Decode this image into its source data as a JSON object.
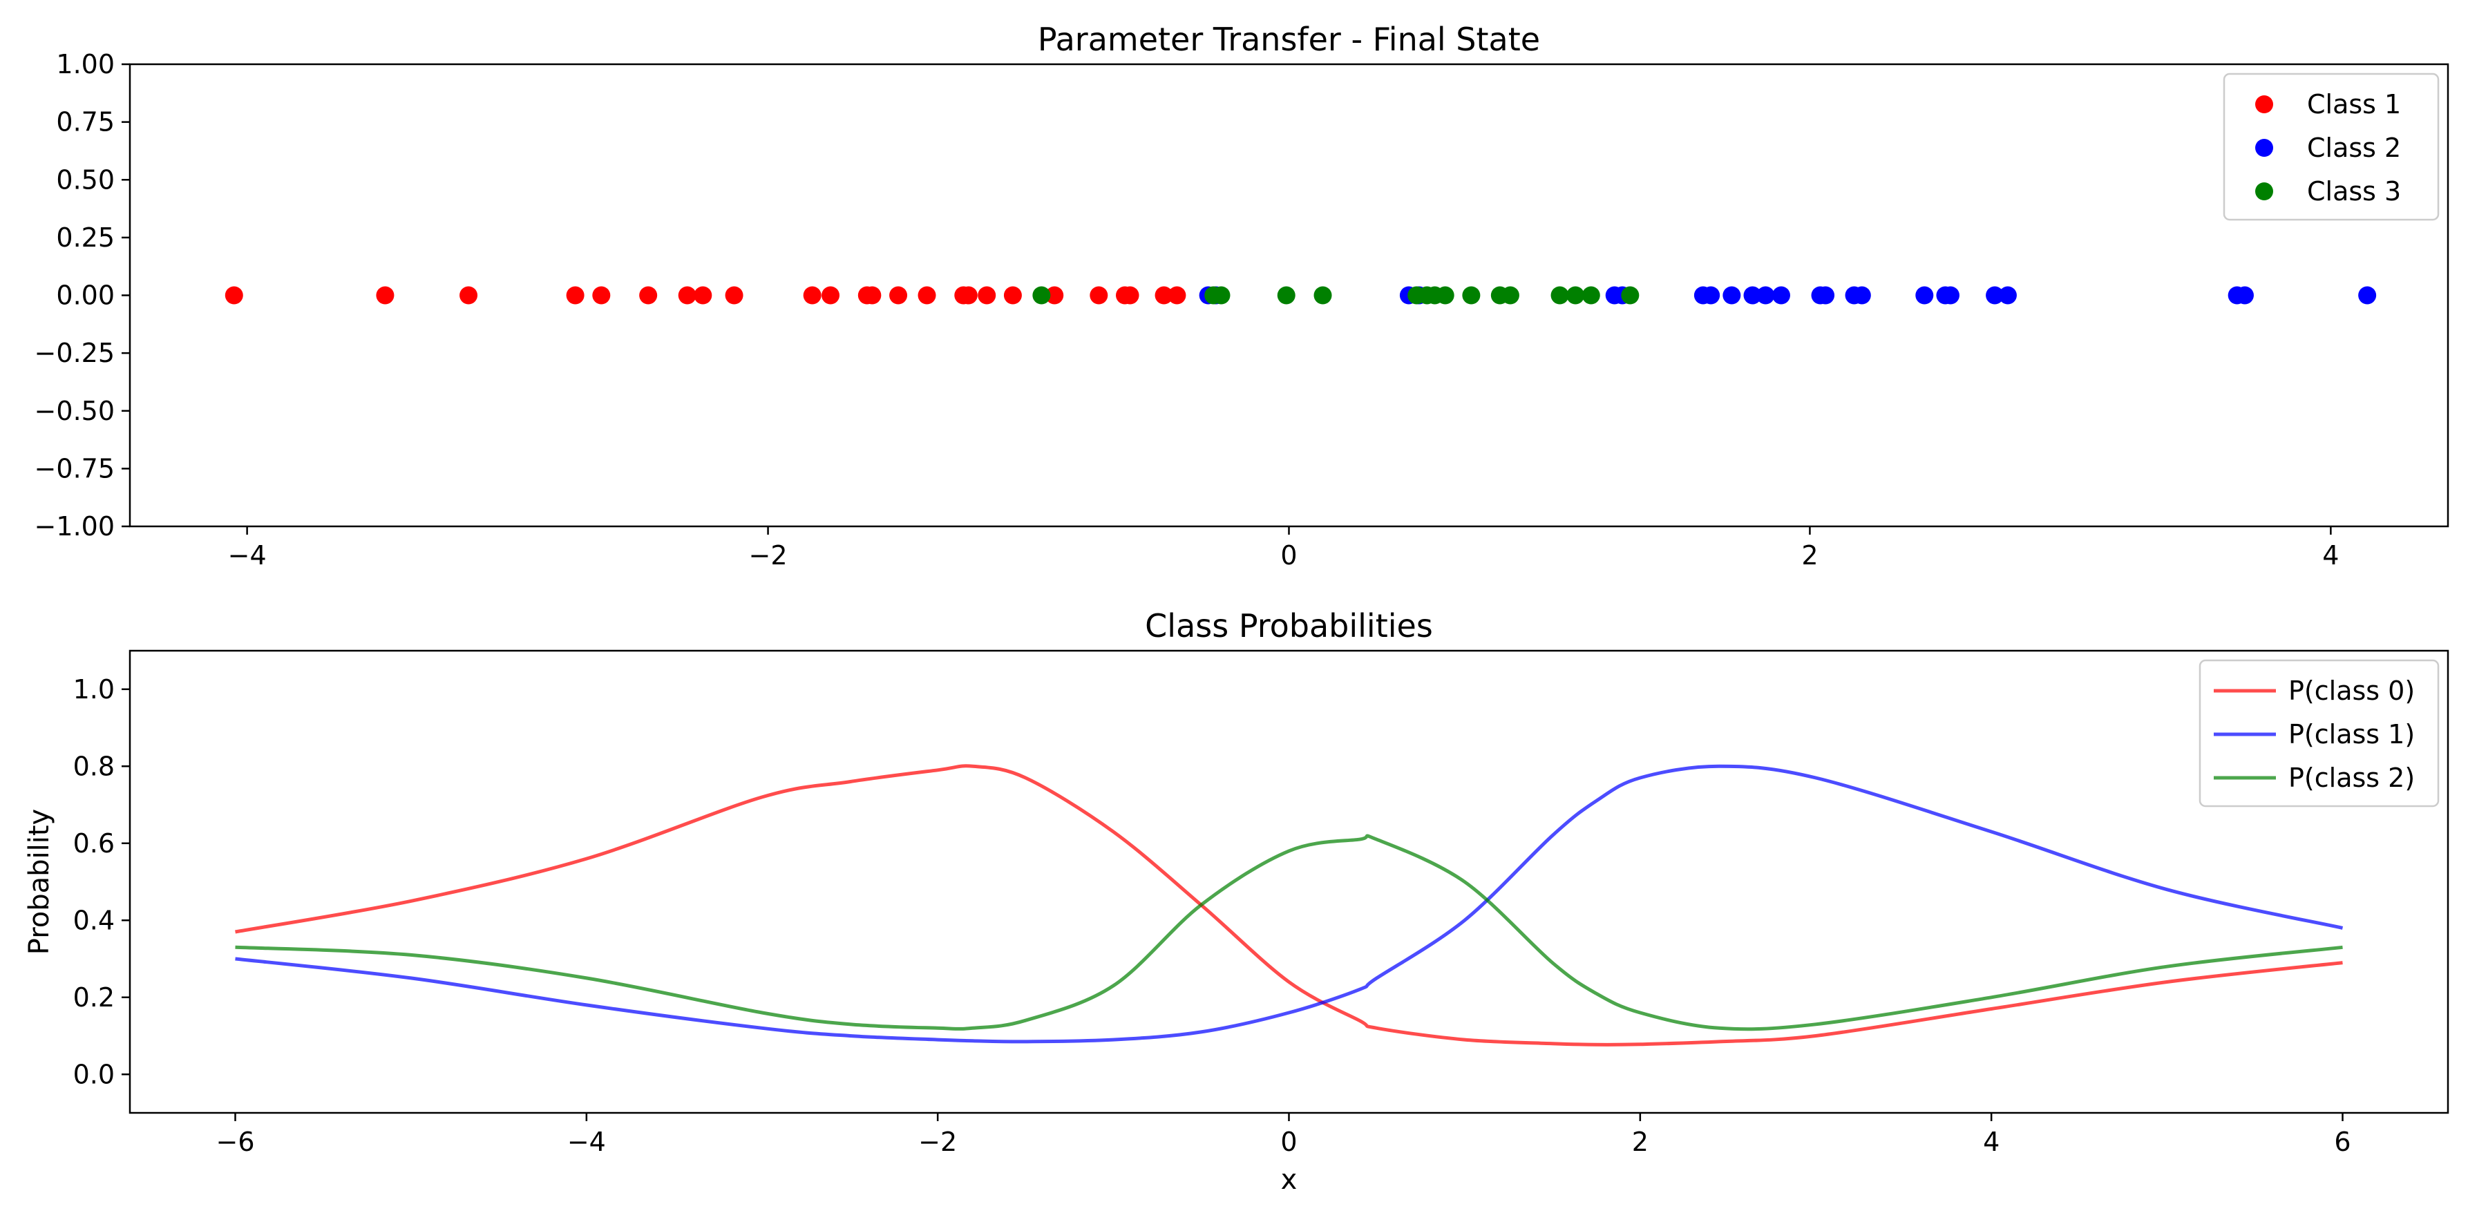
{
  "chart_data": [
    {
      "type": "scatter",
      "title": "Parameter Transfer - Final State",
      "xlabel": "",
      "ylabel": "",
      "xlim": [
        -4.45,
        4.45
      ],
      "ylim": [
        -1.0,
        1.0
      ],
      "xticks": [
        -4,
        -2,
        0,
        2,
        4
      ],
      "xtick_labels": [
        "−4",
        "−2",
        "0",
        "2",
        "4"
      ],
      "yticks": [
        1.0,
        0.75,
        0.5,
        0.25,
        0.0,
        -0.25,
        -0.5,
        -0.75,
        -1.0
      ],
      "ytick_labels": [
        "1.00",
        "0.75",
        "0.50",
        "0.25",
        "0.00",
        "−0.25",
        "−0.50",
        "−0.75",
        "−1.00"
      ],
      "grid": false,
      "legend_position": "top-right",
      "series": [
        {
          "name": "Class 1",
          "color": "#ff0000",
          "x": [
            -4.05,
            -3.47,
            -3.15,
            -2.74,
            -2.64,
            -2.46,
            -2.31,
            -2.25,
            -2.13,
            -1.83,
            -1.76,
            -1.62,
            -1.6,
            -1.5,
            -1.39,
            -1.25,
            -1.23,
            -1.16,
            -1.06,
            -0.9,
            -0.73,
            -0.63,
            -0.61,
            -0.48,
            -0.43
          ],
          "y": [
            0,
            0,
            0,
            0,
            0,
            0,
            0,
            0,
            0,
            0,
            0,
            0,
            0,
            0,
            0,
            0,
            0,
            0,
            0,
            0,
            0,
            0,
            0,
            0,
            0
          ]
        },
        {
          "name": "Class 2",
          "color": "#0000ff",
          "x": [
            -0.31,
            -0.28,
            0.46,
            0.5,
            1.25,
            1.28,
            1.59,
            1.62,
            1.7,
            1.78,
            1.83,
            1.89,
            2.04,
            2.06,
            2.17,
            2.2,
            2.44,
            2.52,
            2.54,
            2.71,
            2.76,
            3.64,
            3.67,
            4.14
          ],
          "y": [
            0,
            0,
            0,
            0,
            0,
            0,
            0,
            0,
            0,
            0,
            0,
            0,
            0,
            0,
            0,
            0,
            0,
            0,
            0,
            0,
            0,
            0,
            0,
            0
          ]
        },
        {
          "name": "Class 3",
          "color": "#008000",
          "x": [
            -0.95,
            -0.29,
            -0.26,
            -0.01,
            0.13,
            0.49,
            0.53,
            0.56,
            0.6,
            0.7,
            0.81,
            0.85,
            1.04,
            1.1,
            1.16,
            1.31
          ],
          "y": [
            0,
            0,
            0,
            0,
            0,
            0,
            0,
            0,
            0,
            0,
            0,
            0,
            0,
            0,
            0,
            0
          ]
        }
      ]
    },
    {
      "type": "line",
      "title": "Class Probabilities",
      "xlabel": "x",
      "ylabel": "Probability",
      "xlim": [
        -6.6,
        6.6
      ],
      "ylim": [
        -0.1,
        1.1
      ],
      "xticks": [
        -6,
        -4,
        -2,
        0,
        2,
        4,
        6
      ],
      "xtick_labels": [
        "−6",
        "−4",
        "−2",
        "0",
        "2",
        "4",
        "6"
      ],
      "yticks": [
        0.0,
        0.2,
        0.4,
        0.6,
        0.8,
        1.0
      ],
      "ytick_labels": [
        "0.0",
        "0.2",
        "0.4",
        "0.6",
        "0.8",
        "1.0"
      ],
      "grid": false,
      "legend_position": "top-right",
      "x": [
        -6,
        -5,
        -4,
        -3,
        -2.5,
        -2,
        -1.8,
        -1.5,
        -1,
        -0.5,
        0,
        0.4,
        0.5,
        1,
        1.5,
        1.75,
        2,
        2.45,
        3,
        4,
        5,
        6
      ],
      "series": [
        {
          "name": "P(class 0)",
          "color": "#ff0000",
          "values": [
            0.37,
            0.45,
            0.56,
            0.72,
            0.76,
            0.79,
            0.8,
            0.77,
            0.63,
            0.44,
            0.24,
            0.14,
            0.12,
            0.09,
            0.08,
            0.077,
            0.078,
            0.085,
            0.1,
            0.17,
            0.24,
            0.29
          ]
        },
        {
          "name": "P(class 1)",
          "color": "#0000ff",
          "values": [
            0.3,
            0.25,
            0.18,
            0.12,
            0.1,
            0.09,
            0.087,
            0.085,
            0.09,
            0.11,
            0.16,
            0.22,
            0.25,
            0.4,
            0.62,
            0.71,
            0.77,
            0.8,
            0.77,
            0.63,
            0.48,
            0.38
          ]
        },
        {
          "name": "P(class 2)",
          "color": "#008000",
          "values": [
            0.33,
            0.31,
            0.25,
            0.16,
            0.13,
            0.12,
            0.12,
            0.14,
            0.23,
            0.44,
            0.58,
            0.61,
            0.61,
            0.5,
            0.29,
            0.21,
            0.16,
            0.12,
            0.13,
            0.2,
            0.28,
            0.33
          ]
        }
      ]
    }
  ]
}
